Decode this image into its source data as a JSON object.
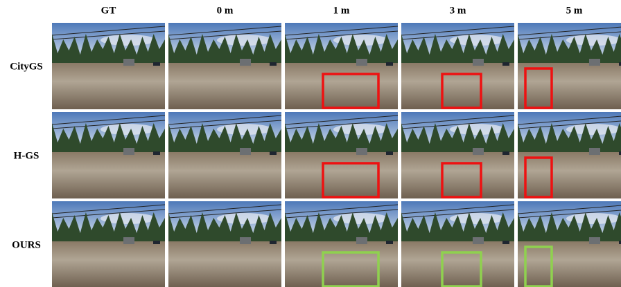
{
  "columns": [
    "GT",
    "0 m",
    "1 m",
    "3 m",
    "5 m"
  ],
  "rows": [
    "CityGS",
    "H-GS",
    "OURS"
  ]
}
